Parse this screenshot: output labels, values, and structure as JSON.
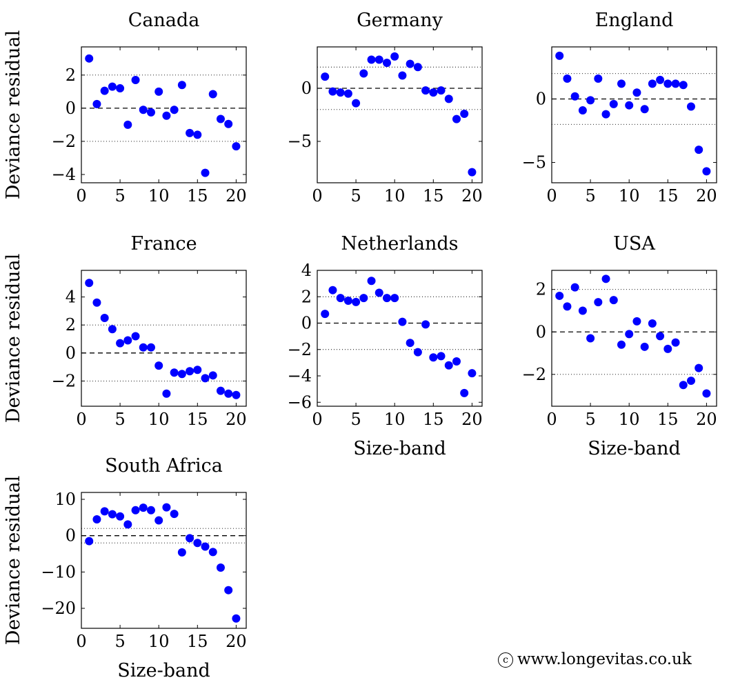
{
  "figure": {
    "copyright_symbol": "c",
    "copyright_text": "www.longevitas.co.uk",
    "marker_color": "#0000FF"
  },
  "chart_data": [
    {
      "type": "scatter",
      "title": "Canada",
      "xlabel": "",
      "ylabel": "Deviance residual",
      "xlim": [
        0,
        21.3
      ],
      "ylim": [
        -4.5,
        3.7
      ],
      "xticks": [
        0,
        5,
        10,
        15,
        20
      ],
      "xtick_labels": [
        "0",
        "5",
        "10",
        "15",
        "20"
      ],
      "yticks": [
        -4,
        -2,
        0,
        2
      ],
      "ytick_labels": [
        "−4",
        "−2",
        "0",
        "2"
      ],
      "reference_lines": [
        0,
        2,
        -2
      ],
      "x": [
        1,
        2,
        3,
        4,
        5,
        6,
        7,
        8,
        9,
        10,
        11,
        12,
        13,
        14,
        15,
        16,
        17,
        18,
        19,
        20
      ],
      "y": [
        3.0,
        0.25,
        1.05,
        1.3,
        1.2,
        -1.0,
        1.7,
        -0.1,
        -0.25,
        1.0,
        -0.45,
        -0.1,
        1.4,
        -1.5,
        -1.6,
        -3.9,
        0.85,
        -0.65,
        -0.95,
        -2.3
      ]
    },
    {
      "type": "scatter",
      "title": "Germany",
      "xlabel": "",
      "ylabel": "",
      "xlim": [
        0,
        21.3
      ],
      "ylim": [
        -8.9,
        3.9
      ],
      "xticks": [
        0,
        5,
        10,
        15,
        20
      ],
      "xtick_labels": [
        "0",
        "5",
        "10",
        "15",
        "20"
      ],
      "yticks": [
        -5,
        0
      ],
      "ytick_labels": [
        "−5",
        "0"
      ],
      "reference_lines": [
        0,
        2,
        -2
      ],
      "x": [
        1,
        2,
        3,
        4,
        5,
        6,
        7,
        8,
        9,
        10,
        11,
        12,
        13,
        14,
        15,
        16,
        17,
        18,
        19,
        20
      ],
      "y": [
        1.1,
        -0.3,
        -0.4,
        -0.5,
        -1.4,
        1.4,
        2.7,
        2.7,
        2.4,
        3.0,
        1.2,
        2.3,
        2.0,
        -0.2,
        -0.4,
        -0.2,
        -1.0,
        -2.9,
        -2.4,
        -7.9
      ]
    },
    {
      "type": "scatter",
      "title": "England",
      "xlabel": "",
      "ylabel": "",
      "xlim": [
        0,
        21.3
      ],
      "ylim": [
        -6.6,
        4.1
      ],
      "xticks": [
        0,
        5,
        10,
        15,
        20
      ],
      "xtick_labels": [
        "0",
        "5",
        "10",
        "15",
        "20"
      ],
      "yticks": [
        -5,
        0
      ],
      "ytick_labels": [
        "−5",
        "0"
      ],
      "reference_lines": [
        0,
        2,
        -2
      ],
      "x": [
        1,
        2,
        3,
        4,
        5,
        6,
        7,
        8,
        9,
        10,
        11,
        12,
        13,
        14,
        15,
        16,
        17,
        18,
        19,
        20
      ],
      "y": [
        3.4,
        1.6,
        0.2,
        -0.9,
        -0.1,
        1.6,
        -1.2,
        -0.4,
        1.2,
        -0.5,
        0.5,
        -0.8,
        1.2,
        1.5,
        1.2,
        1.2,
        1.1,
        -0.6,
        -4.0,
        -5.7
      ]
    },
    {
      "type": "scatter",
      "title": "France",
      "xlabel": "",
      "ylabel": "Deviance residual",
      "xlim": [
        0,
        21.3
      ],
      "ylim": [
        -3.8,
        5.9
      ],
      "xticks": [
        0,
        5,
        10,
        15,
        20
      ],
      "xtick_labels": [
        "0",
        "5",
        "10",
        "15",
        "20"
      ],
      "yticks": [
        -2,
        0,
        2,
        4
      ],
      "ytick_labels": [
        "−2",
        "0",
        "2",
        "4"
      ],
      "reference_lines": [
        0,
        2,
        -2
      ],
      "x": [
        1,
        2,
        3,
        4,
        5,
        6,
        7,
        8,
        9,
        10,
        11,
        12,
        13,
        14,
        15,
        16,
        17,
        18,
        19,
        20
      ],
      "y": [
        5.0,
        3.6,
        2.5,
        1.7,
        0.7,
        0.9,
        1.2,
        0.4,
        0.4,
        -0.9,
        -2.9,
        -1.4,
        -1.5,
        -1.3,
        -1.2,
        -1.8,
        -1.6,
        -2.7,
        -2.9,
        -3.0
      ]
    },
    {
      "type": "scatter",
      "title": "Netherlands",
      "xlabel": "Size-band",
      "ylabel": "",
      "xlim": [
        0,
        21.3
      ],
      "ylim": [
        -6.3,
        4.0
      ],
      "xticks": [
        0,
        5,
        10,
        15,
        20
      ],
      "xtick_labels": [
        "0",
        "5",
        "10",
        "15",
        "20"
      ],
      "yticks": [
        -6,
        -4,
        -2,
        0,
        2,
        4
      ],
      "ytick_labels": [
        "−6",
        "−4",
        "−2",
        "0",
        "2",
        "4"
      ],
      "reference_lines": [
        0,
        2,
        -2
      ],
      "x": [
        1,
        2,
        3,
        4,
        5,
        6,
        7,
        8,
        9,
        10,
        11,
        12,
        13,
        14,
        15,
        16,
        17,
        18,
        19,
        20
      ],
      "y": [
        0.7,
        2.5,
        1.9,
        1.7,
        1.6,
        1.9,
        3.2,
        2.3,
        1.9,
        1.9,
        0.1,
        -1.5,
        -2.2,
        -0.1,
        -2.6,
        -2.5,
        -3.2,
        -2.9,
        -5.3,
        -3.8
      ]
    },
    {
      "type": "scatter",
      "title": "USA",
      "xlabel": "Size-band",
      "ylabel": "",
      "xlim": [
        0,
        21.3
      ],
      "ylim": [
        -3.5,
        2.9
      ],
      "xticks": [
        0,
        5,
        10,
        15,
        20
      ],
      "xtick_labels": [
        "0",
        "5",
        "10",
        "15",
        "20"
      ],
      "yticks": [
        -2,
        0,
        2
      ],
      "ytick_labels": [
        "−2",
        "0",
        "2"
      ],
      "reference_lines": [
        0,
        2,
        -2
      ],
      "x": [
        1,
        2,
        3,
        4,
        5,
        6,
        7,
        8,
        9,
        10,
        11,
        12,
        13,
        14,
        15,
        16,
        17,
        18,
        19,
        20
      ],
      "y": [
        1.7,
        1.2,
        2.1,
        1.0,
        -0.3,
        1.4,
        2.5,
        1.5,
        -0.6,
        -0.1,
        0.5,
        -0.7,
        0.4,
        -0.2,
        -0.8,
        -0.5,
        -2.5,
        -2.3,
        -1.7,
        -2.9
      ]
    },
    {
      "type": "scatter",
      "title": "South Africa",
      "xlabel": "Size-band",
      "ylabel": "Deviance residual",
      "xlim": [
        0,
        21.3
      ],
      "ylim": [
        -25.5,
        11.9
      ],
      "xticks": [
        0,
        5,
        10,
        15,
        20
      ],
      "xtick_labels": [
        "0",
        "5",
        "10",
        "15",
        "20"
      ],
      "yticks": [
        -20,
        -10,
        0,
        10
      ],
      "ytick_labels": [
        "−20",
        "−10",
        "0",
        "10"
      ],
      "reference_lines": [
        0,
        2,
        -2
      ],
      "x": [
        1,
        2,
        3,
        4,
        5,
        6,
        7,
        8,
        9,
        10,
        11,
        12,
        13,
        14,
        15,
        16,
        17,
        18,
        19,
        20
      ],
      "y": [
        -1.5,
        4.5,
        6.7,
        5.9,
        5.3,
        3.1,
        7.0,
        7.7,
        7.0,
        4.2,
        7.8,
        6.0,
        -4.6,
        -0.7,
        -2.0,
        -3.0,
        -4.5,
        -8.8,
        -15.0,
        -22.8
      ]
    }
  ]
}
